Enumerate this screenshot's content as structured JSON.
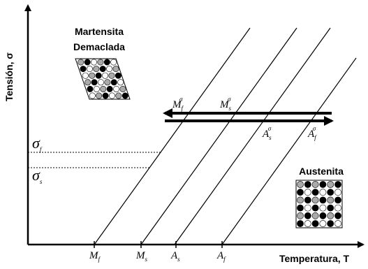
{
  "axes": {
    "y_label": "Tensión, σ",
    "x_label": "Temperatura, T"
  },
  "phases": {
    "martensite": [
      "Martensita",
      "Demaclada"
    ],
    "austenite": "Austenita"
  },
  "stress_levels": [
    {
      "base": "σ",
      "sub": "f"
    },
    {
      "base": "σ",
      "sub": "s"
    }
  ],
  "temperatures": [
    {
      "base": "M",
      "sub": "f"
    },
    {
      "base": "M",
      "sub": "s"
    },
    {
      "base": "A",
      "sub": "s"
    },
    {
      "base": "A",
      "sub": "f"
    }
  ],
  "stress_temperatures": [
    {
      "base": "M",
      "sub": "f",
      "sup": "σ"
    },
    {
      "base": "M",
      "sub": "s",
      "sup": "σ"
    },
    {
      "base": "A",
      "sub": "s",
      "sup": "σ"
    },
    {
      "base": "A",
      "sub": "f",
      "sup": "σ"
    }
  ]
}
